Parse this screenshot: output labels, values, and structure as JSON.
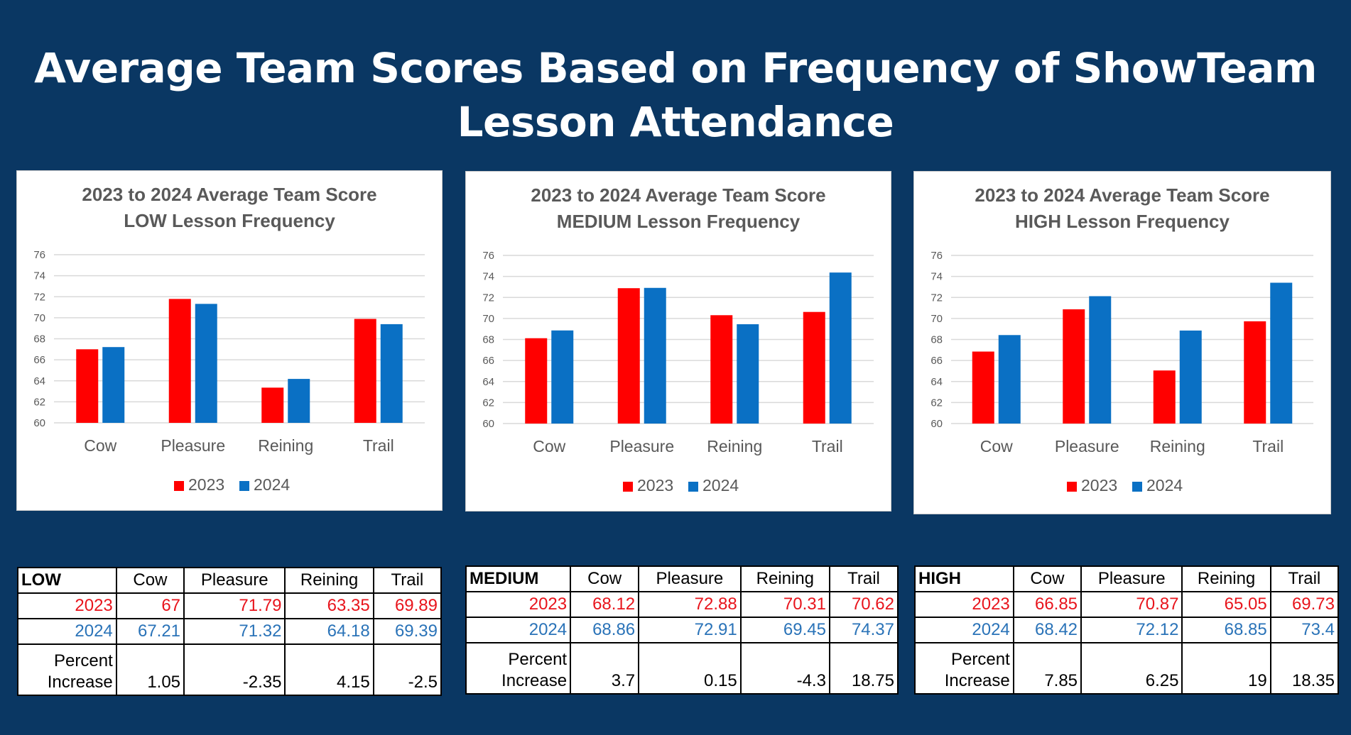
{
  "page_title": {
    "line1": "Average Team Scores Based on Frequency of ShowTeam",
    "line2": "Lesson Attendance"
  },
  "colors": {
    "y2023": "#ff0000",
    "y2024": "#0a70c4",
    "background": "#0a3763"
  },
  "chart_data": [
    {
      "type": "bar",
      "title_line1": "2023 to 2024 Average Team Score",
      "title_line2": "LOW Lesson Frequency",
      "categories": [
        "Cow",
        "Pleasure",
        "Reining",
        "Trail"
      ],
      "series": [
        {
          "name": "2023",
          "values": [
            67,
            71.79,
            63.35,
            69.89
          ]
        },
        {
          "name": "2024",
          "values": [
            67.21,
            71.32,
            64.18,
            69.39
          ]
        }
      ],
      "ylim": [
        60,
        76
      ],
      "yticks": [
        "60",
        "62",
        "64",
        "66",
        "68",
        "70",
        "72",
        "74",
        "76"
      ],
      "grid": true,
      "legend": "bottom"
    },
    {
      "type": "bar",
      "title_line1": "2023 to 2024 Average Team Score",
      "title_line2": "MEDIUM Lesson Frequency",
      "categories": [
        "Cow",
        "Pleasure",
        "Reining",
        "Trail"
      ],
      "series": [
        {
          "name": "2023",
          "values": [
            68.12,
            72.88,
            70.31,
            70.62
          ]
        },
        {
          "name": "2024",
          "values": [
            68.86,
            72.91,
            69.45,
            74.37
          ]
        }
      ],
      "ylim": [
        60,
        76
      ],
      "yticks": [
        "60",
        "62",
        "64",
        "66",
        "68",
        "70",
        "72",
        "74",
        "76"
      ],
      "grid": true,
      "legend": "bottom"
    },
    {
      "type": "bar",
      "title_line1": "2023 to 2024 Average Team Score",
      "title_line2": "HIGH Lesson Frequency",
      "categories": [
        "Cow",
        "Pleasure",
        "Reining",
        "Trail"
      ],
      "series": [
        {
          "name": "2023",
          "values": [
            66.85,
            70.87,
            65.05,
            69.73
          ]
        },
        {
          "name": "2024",
          "values": [
            68.42,
            72.12,
            68.85,
            73.4
          ]
        }
      ],
      "ylim": [
        60,
        76
      ],
      "yticks": [
        "60",
        "62",
        "64",
        "66",
        "68",
        "70",
        "72",
        "74",
        "76"
      ],
      "grid": true,
      "legend": "bottom"
    }
  ],
  "tables": [
    {
      "corner": "LOW",
      "headers": [
        "Cow",
        "Pleasure",
        "Reining",
        "Trail"
      ],
      "row2023": {
        "label": "2023",
        "values": [
          "67",
          "71.79",
          "63.35",
          "69.89"
        ]
      },
      "row2024": {
        "label": "2024",
        "values": [
          "67.21",
          "71.32",
          "64.18",
          "69.39"
        ]
      },
      "rowPct": {
        "label1": "Percent",
        "label2": "Increase",
        "values": [
          "1.05",
          "-2.35",
          "4.15",
          "-2.5"
        ]
      }
    },
    {
      "corner": "MEDIUM",
      "headers": [
        "Cow",
        "Pleasure",
        "Reining",
        "Trail"
      ],
      "row2023": {
        "label": "2023",
        "values": [
          "68.12",
          "72.88",
          "70.31",
          "70.62"
        ]
      },
      "row2024": {
        "label": "2024",
        "values": [
          "68.86",
          "72.91",
          "69.45",
          "74.37"
        ]
      },
      "rowPct": {
        "label1": "Percent",
        "label2": "Increase",
        "values": [
          "3.7",
          "0.15",
          "-4.3",
          "18.75"
        ]
      }
    },
    {
      "corner": "HIGH",
      "headers": [
        "Cow",
        "Pleasure",
        "Reining",
        "Trail"
      ],
      "row2023": {
        "label": "2023",
        "values": [
          "66.85",
          "70.87",
          "65.05",
          "69.73"
        ]
      },
      "row2024": {
        "label": "2024",
        "values": [
          "68.42",
          "72.12",
          "68.85",
          "73.4"
        ]
      },
      "rowPct": {
        "label1": "Percent",
        "label2": "Increase",
        "values": [
          "7.85",
          "6.25",
          "19",
          "18.35"
        ]
      }
    }
  ]
}
